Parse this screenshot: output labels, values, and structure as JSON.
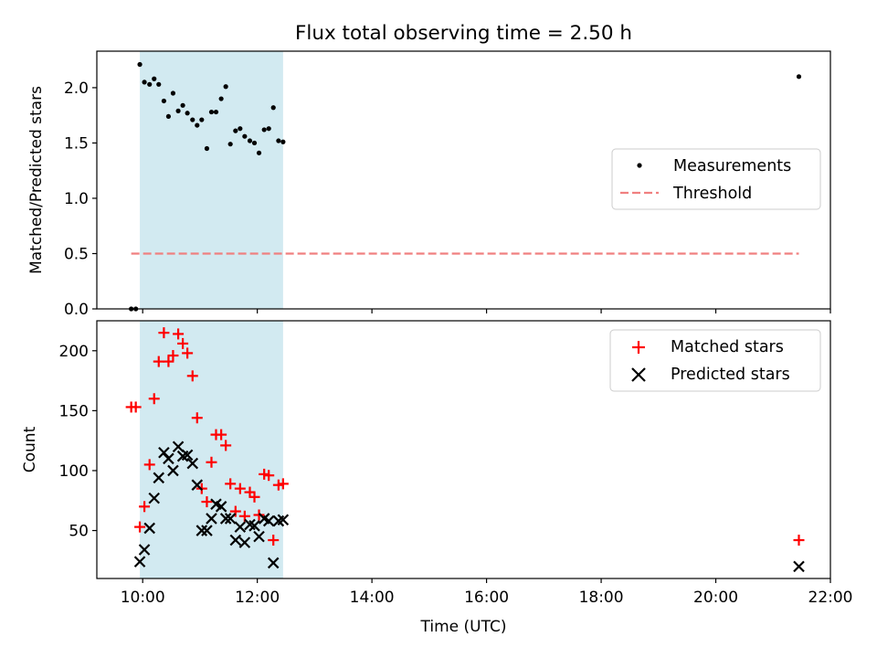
{
  "title": "Flux total observing time = 2.50 h",
  "colors": {
    "shade": "#add8e6",
    "measurement": "#000000",
    "threshold": "#f08080",
    "matched": "#ff0000",
    "predicted": "#000000"
  },
  "chart_data": [
    {
      "type": "scatter",
      "panel": "top",
      "ylabel": "Matched/Predicted stars",
      "xlim": [
        9.2,
        22.0
      ],
      "ylim": [
        0,
        2.33
      ],
      "yticks": [
        0.0,
        0.5,
        1.0,
        1.5,
        2.0
      ],
      "ytick_labels": [
        "0.0",
        "0.5",
        "1.0",
        "1.5",
        "2.0"
      ],
      "shaded_span": [
        9.95,
        12.45
      ],
      "legend_position": "center-right",
      "legend": [
        "Measurements",
        "Threshold"
      ],
      "threshold": {
        "name": "Threshold",
        "x": [
          9.8,
          21.45
        ],
        "y": 0.5,
        "style": "dashed"
      },
      "series": [
        {
          "name": "Measurements",
          "marker": "dot",
          "x": [
            9.8,
            9.88,
            9.95,
            10.03,
            10.12,
            10.2,
            10.28,
            10.37,
            10.45,
            10.53,
            10.62,
            10.7,
            10.78,
            10.87,
            10.95,
            11.03,
            11.12,
            11.2,
            11.28,
            11.37,
            11.45,
            11.53,
            11.62,
            11.7,
            11.78,
            11.87,
            11.95,
            12.03,
            12.12,
            12.2,
            12.28,
            12.37,
            12.45,
            21.45
          ],
          "y": [
            0.0,
            0.0,
            2.21,
            2.05,
            2.03,
            2.08,
            2.03,
            1.88,
            1.74,
            1.95,
            1.79,
            1.84,
            1.77,
            1.71,
            1.66,
            1.71,
            1.45,
            1.78,
            1.78,
            1.9,
            2.01,
            1.49,
            1.61,
            1.63,
            1.56,
            1.52,
            1.5,
            1.41,
            1.62,
            1.63,
            1.82,
            1.52,
            1.51,
            2.1
          ]
        }
      ]
    },
    {
      "type": "scatter",
      "panel": "bottom",
      "xlabel": "Time (UTC)",
      "ylabel": "Count",
      "xlim": [
        9.2,
        22.0
      ],
      "ylim": [
        10,
        225
      ],
      "xticks": [
        10,
        12,
        14,
        16,
        18,
        20,
        22
      ],
      "xtick_labels": [
        "10:00",
        "12:00",
        "14:00",
        "16:00",
        "18:00",
        "20:00",
        "22:00"
      ],
      "yticks": [
        50,
        100,
        150,
        200
      ],
      "ytick_labels": [
        "50",
        "100",
        "150",
        "200"
      ],
      "shaded_span": [
        9.95,
        12.45
      ],
      "legend_position": "top-right",
      "legend": [
        "Matched stars",
        "Predicted stars"
      ],
      "series": [
        {
          "name": "Matched stars",
          "marker": "plus",
          "x": [
            9.8,
            9.88,
            9.95,
            10.03,
            10.12,
            10.2,
            10.28,
            10.37,
            10.45,
            10.53,
            10.62,
            10.7,
            10.78,
            10.87,
            10.95,
            11.03,
            11.12,
            11.2,
            11.28,
            11.37,
            11.45,
            11.53,
            11.62,
            11.7,
            11.78,
            11.87,
            11.95,
            12.03,
            12.12,
            12.2,
            12.28,
            12.37,
            12.45,
            21.45
          ],
          "y": [
            153,
            153,
            53,
            70,
            105,
            160,
            191,
            215,
            191,
            196,
            214,
            206,
            198,
            179,
            144,
            85,
            74,
            107,
            130,
            130,
            121,
            89,
            66,
            85,
            62,
            82,
            78,
            63,
            97,
            96,
            42,
            88,
            89,
            42
          ]
        },
        {
          "name": "Predicted stars",
          "marker": "x",
          "x": [
            9.95,
            10.03,
            10.12,
            10.2,
            10.28,
            10.37,
            10.45,
            10.53,
            10.62,
            10.7,
            10.78,
            10.87,
            10.95,
            11.03,
            11.12,
            11.2,
            11.28,
            11.37,
            11.45,
            11.53,
            11.62,
            11.7,
            11.78,
            11.87,
            11.95,
            12.03,
            12.12,
            12.2,
            12.28,
            12.37,
            12.45,
            21.45
          ],
          "y": [
            24,
            34,
            52,
            77,
            94,
            115,
            110,
            100,
            120,
            112,
            113,
            106,
            88,
            50,
            50,
            60,
            72,
            70,
            60,
            60,
            42,
            53,
            40,
            55,
            54,
            45,
            60,
            58,
            23,
            58,
            59,
            20
          ]
        }
      ]
    }
  ]
}
